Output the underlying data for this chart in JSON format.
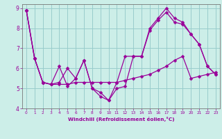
{
  "xlabel": "Windchill (Refroidissement éolien,°C)",
  "bg_color": "#cceee8",
  "line_color": "#990099",
  "grid_color": "#99cccc",
  "spine_color": "#777777",
  "xlim": [
    -0.5,
    23.5
  ],
  "ylim": [
    4.0,
    9.2
  ],
  "xticks": [
    0,
    1,
    2,
    3,
    4,
    5,
    6,
    7,
    8,
    9,
    10,
    11,
    12,
    13,
    14,
    15,
    16,
    17,
    18,
    19,
    20,
    21,
    22,
    23
  ],
  "yticks": [
    4,
    5,
    6,
    7,
    8,
    9
  ],
  "line1_y": [
    8.9,
    6.5,
    5.3,
    5.2,
    5.3,
    6.0,
    5.5,
    6.4,
    5.0,
    4.6,
    4.4,
    5.0,
    5.1,
    6.6,
    6.6,
    7.9,
    8.4,
    8.8,
    8.3,
    8.2,
    7.7,
    7.2,
    6.1,
    5.7
  ],
  "line2_y": [
    8.9,
    6.5,
    5.3,
    5.2,
    5.2,
    5.2,
    5.3,
    5.3,
    5.3,
    5.3,
    5.3,
    5.3,
    5.4,
    5.5,
    5.6,
    5.7,
    5.9,
    6.1,
    6.4,
    6.6,
    5.5,
    5.6,
    5.7,
    5.8
  ],
  "line3_y": [
    8.9,
    6.5,
    5.3,
    5.2,
    6.1,
    5.1,
    5.5,
    6.4,
    5.0,
    4.8,
    4.4,
    5.3,
    6.6,
    6.6,
    6.6,
    8.0,
    8.5,
    9.0,
    8.5,
    8.3,
    7.7,
    7.2,
    6.1,
    5.7
  ],
  "markersize": 2.5,
  "linewidth": 0.9
}
